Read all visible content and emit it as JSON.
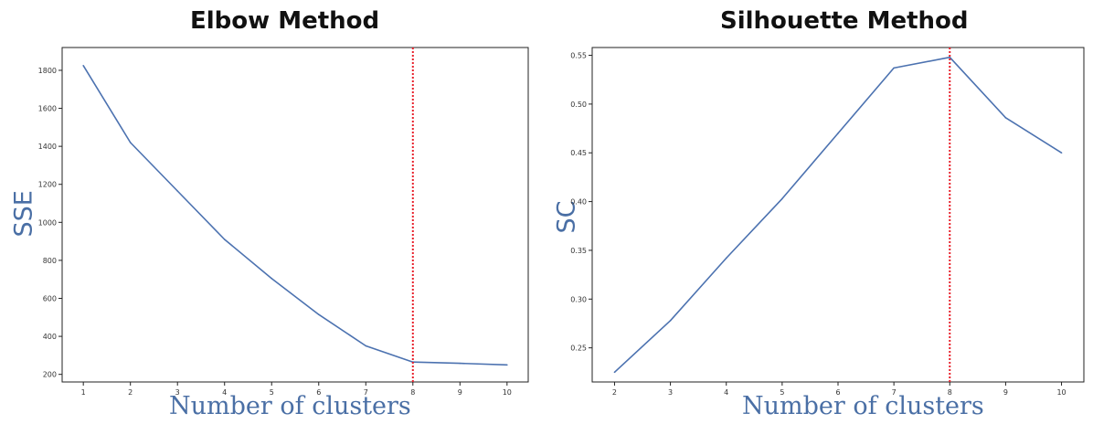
{
  "colors": {
    "line": "#4c72b0",
    "marker_line": "#e8202a",
    "axis_label": "#4a6fa5",
    "frame": "#222222",
    "tick_text": "#333333"
  },
  "chart_data": [
    {
      "type": "line",
      "title": "Elbow Method",
      "xlabel": "Number of clusters",
      "ylabel": "SSE",
      "x": [
        1,
        2,
        3,
        4,
        5,
        6,
        7,
        8,
        9,
        10
      ],
      "xticks": [
        "1",
        "2",
        "3",
        "4",
        "5",
        "6",
        "7",
        "8",
        "9",
        "10"
      ],
      "xlim": [
        0.55,
        10.45
      ],
      "ylim": [
        160,
        1920
      ],
      "yticks": [
        "200",
        "400",
        "600",
        "800",
        "1000",
        "1200",
        "1400",
        "1600",
        "1800"
      ],
      "ytick_values": [
        200,
        400,
        600,
        800,
        1000,
        1200,
        1400,
        1600,
        1800
      ],
      "series": [
        {
          "values": [
            1825,
            1420,
            1165,
            910,
            705,
            515,
            350,
            265,
            258,
            250
          ]
        }
      ],
      "vline": {
        "x": 8,
        "style": "dotted",
        "color": "red"
      },
      "grid": false
    },
    {
      "type": "line",
      "title": "Silhouette Method",
      "xlabel": "Number of clusters",
      "ylabel": "SC",
      "x": [
        2,
        3,
        4,
        5,
        6,
        7,
        8,
        9,
        10
      ],
      "xticks": [
        "2",
        "3",
        "4",
        "5",
        "6",
        "7",
        "8",
        "9",
        "10"
      ],
      "xlim": [
        1.6,
        10.4
      ],
      "ylim": [
        0.215,
        0.558
      ],
      "yticks": [
        "0.25",
        "0.30",
        "0.35",
        "0.40",
        "0.45",
        "0.50",
        "0.55"
      ],
      "ytick_values": [
        0.25,
        0.3,
        0.35,
        0.4,
        0.45,
        0.5,
        0.55
      ],
      "series": [
        {
          "values": [
            0.225,
            0.278,
            0.342,
            0.403,
            0.47,
            0.537,
            0.548,
            0.486,
            0.45
          ]
        }
      ],
      "vline": {
        "x": 8,
        "style": "dotted",
        "color": "red"
      },
      "grid": false
    }
  ]
}
